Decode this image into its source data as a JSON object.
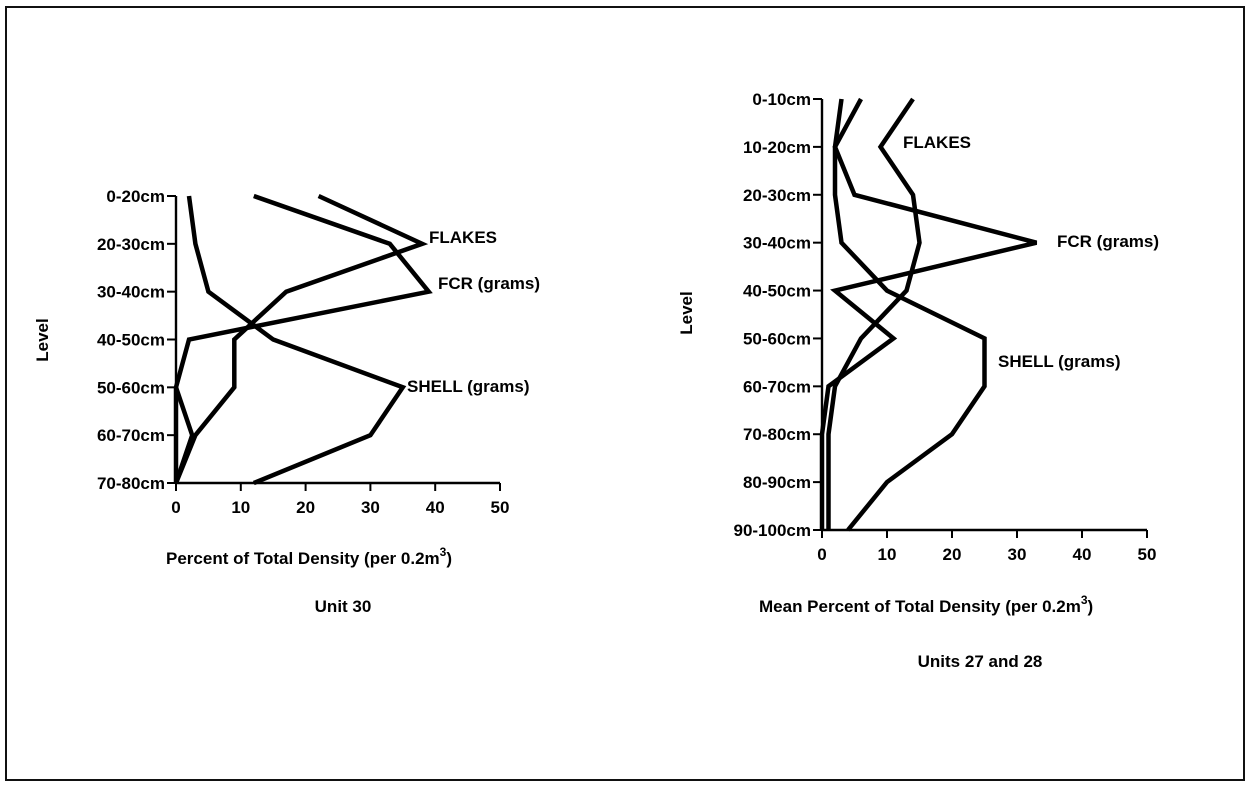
{
  "chart_data": [
    {
      "type": "line",
      "caption": "Unit 30",
      "xlabel": "Percent of Total Density (per 0.2m",
      "xlabel_sup": "3",
      "xlabel_end": ")",
      "ylabel": "Level",
      "xlim": [
        0,
        50
      ],
      "xticks": [
        "0",
        "10",
        "20",
        "30",
        "40",
        "50"
      ],
      "categories": [
        "0-20cm",
        "20-30cm",
        "30-40cm",
        "40-50cm",
        "50-60cm",
        "60-70cm",
        "70-80cm"
      ],
      "orientation": "vertical-profile",
      "series": [
        {
          "name": "FLAKES",
          "values": [
            22,
            38,
            17,
            9,
            9,
            3,
            0
          ]
        },
        {
          "name": "FCR (grams)",
          "values": [
            12,
            33,
            39,
            2,
            0,
            0,
            0
          ]
        },
        {
          "name": "SHELL (grams)",
          "values": [
            2,
            3,
            5,
            15,
            35,
            30,
            12
          ]
        },
        {
          "values": [
            null,
            null,
            null,
            null,
            0,
            2.5,
            0
          ]
        }
      ]
    },
    {
      "type": "line",
      "caption": "Units 27 and 28",
      "xlabel": "Mean Percent of Total Density (per 0.2m",
      "xlabel_sup": "3",
      "xlabel_end": ")",
      "ylabel": "Level",
      "xlim": [
        0,
        50
      ],
      "xticks": [
        "0",
        "10",
        "20",
        "30",
        "40",
        "50"
      ],
      "categories": [
        "0-10cm",
        "10-20cm",
        "20-30cm",
        "30-40cm",
        "40-50cm",
        "50-60cm",
        "60-70cm",
        "70-80cm",
        "80-90cm",
        "90-100cm"
      ],
      "orientation": "vertical-profile",
      "series": [
        {
          "name": "FLAKES",
          "values": [
            14,
            9,
            14,
            15,
            13,
            6,
            2,
            1,
            1,
            1
          ]
        },
        {
          "name": "FCR (grams)",
          "values": [
            6,
            2,
            5,
            33,
            2,
            11,
            1,
            0,
            0,
            0
          ]
        },
        {
          "name": "SHELL (grams)",
          "values": [
            3,
            2,
            2,
            3,
            10,
            25,
            25,
            20,
            10,
            4
          ]
        }
      ]
    }
  ]
}
